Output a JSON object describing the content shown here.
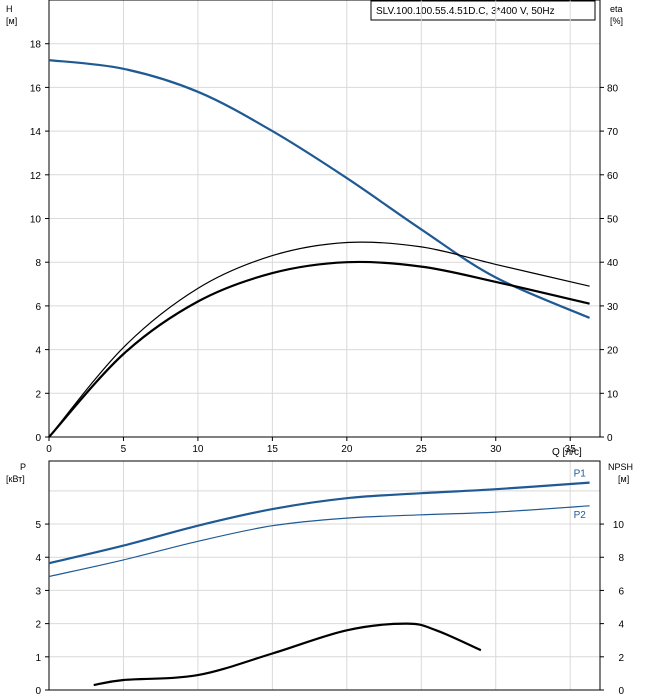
{
  "chart_data": [
    {
      "type": "line",
      "title": "SLV.100.100.55.4.51D.C, 3*400 V, 50Hz",
      "y_label": "H",
      "y_unit": "[м]",
      "y2_label": "eta",
      "y2_unit": "[%]",
      "x_label": "Q [л/с]",
      "xlim": [
        0,
        37
      ],
      "ylim": [
        0,
        20
      ],
      "y2lim": [
        0,
        100
      ],
      "x_ticks": [
        0,
        5,
        10,
        15,
        20,
        25,
        30,
        35
      ],
      "y_ticks": [
        0,
        2,
        4,
        6,
        8,
        10,
        12,
        14,
        16,
        18
      ],
      "y2_ticks": [
        0,
        10,
        20,
        30,
        40,
        50,
        60,
        70,
        80
      ],
      "grid": true,
      "series": [
        {
          "name": "",
          "axis": "y",
          "color": "#1f5a94",
          "x": [
            0,
            5,
            10,
            15,
            20,
            25,
            30,
            36.3
          ],
          "y": [
            17.25,
            16.85,
            15.8,
            14.0,
            11.85,
            9.5,
            7.3,
            5.45
          ]
        },
        {
          "name": "",
          "axis": "y2",
          "color": "#000000",
          "x": [
            0,
            5,
            10,
            15,
            20,
            25,
            30,
            36.3
          ],
          "y": [
            0,
            20.5,
            34,
            41.5,
            44.5,
            43.5,
            39.5,
            34.5
          ]
        },
        {
          "name": "",
          "axis": "y2",
          "color": "#000000",
          "x": [
            0,
            5,
            10,
            15,
            20,
            25,
            30,
            36.3
          ],
          "y": [
            0,
            19,
            31,
            37.5,
            40,
            39,
            35.5,
            30.5
          ]
        }
      ]
    },
    {
      "type": "line",
      "y_label": "P",
      "y_unit": "[кВт]",
      "y2_label": "NPSH",
      "y2_unit": "[м]",
      "xlim": [
        0,
        37
      ],
      "ylim": [
        0,
        6
      ],
      "y2lim": [
        0,
        12
      ],
      "y_ticks": [
        0,
        1,
        2,
        3,
        4,
        5
      ],
      "y2_ticks": [
        0,
        2,
        4,
        6,
        8,
        10
      ],
      "grid": true,
      "series": [
        {
          "name": "P1",
          "axis": "y",
          "color": "#1f5a94",
          "x": [
            0,
            5,
            10,
            15,
            20,
            25,
            30,
            36.3
          ],
          "y": [
            3.82,
            4.35,
            4.95,
            5.45,
            5.78,
            5.93,
            6.05,
            6.25
          ]
        },
        {
          "name": "P2",
          "axis": "y",
          "color": "#1f5a94",
          "x": [
            0,
            5,
            10,
            15,
            20,
            25,
            30,
            36.3
          ],
          "y": [
            3.42,
            3.92,
            4.48,
            4.95,
            5.18,
            5.28,
            5.36,
            5.55
          ]
        },
        {
          "name": "",
          "axis": "y2",
          "color": "#000000",
          "x": [
            3,
            5,
            10,
            15,
            20,
            24,
            26,
            29
          ],
          "y": [
            0.3,
            0.6,
            0.9,
            2.2,
            3.6,
            4.0,
            3.6,
            2.4
          ]
        }
      ]
    }
  ]
}
